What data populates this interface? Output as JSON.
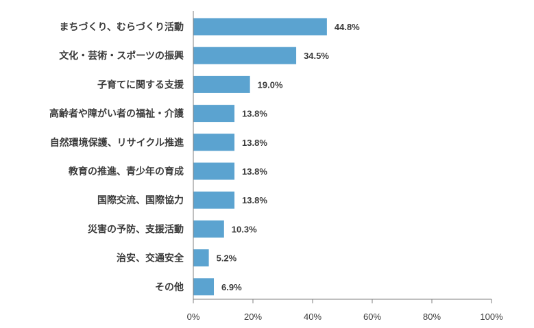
{
  "colors": {
    "bar": "#5ba3d0",
    "axis": "#7f7f7f",
    "text": "#3a3a3a"
  },
  "chart_data": {
    "type": "bar",
    "orientation": "horizontal",
    "title": "",
    "xlabel": "",
    "ylabel": "",
    "categories": [
      "まちづくり、むらづくり活動",
      "文化・芸術・スポーツの振興",
      "子育てに関する支援",
      "高齢者や障がい者の福祉・介護",
      "自然環境保護、リサイクル推進",
      "教育の推進、青少年の育成",
      "国際交流、国際協力",
      "災害の予防、支援活動",
      "治安、交通安全",
      "その他"
    ],
    "values": [
      44.8,
      34.5,
      19.0,
      13.8,
      13.8,
      13.8,
      13.8,
      10.3,
      5.2,
      6.9
    ],
    "value_labels": [
      "44.8%",
      "34.5%",
      "19.0%",
      "13.8%",
      "13.8%",
      "13.8%",
      "13.8%",
      "10.3%",
      "5.2%",
      "6.9%"
    ],
    "xlim": [
      0,
      100
    ],
    "xticks": [
      0,
      20,
      40,
      60,
      80,
      100
    ],
    "xtick_labels": [
      "0%",
      "20%",
      "40%",
      "60%",
      "80%",
      "100%"
    ],
    "grid": false,
    "legend": "none"
  }
}
